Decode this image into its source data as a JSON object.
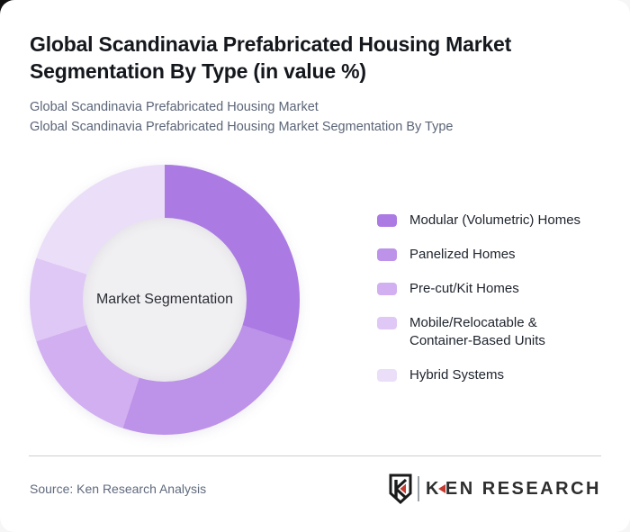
{
  "header": {
    "title": "Global Scandinavia Prefabricated Housing Market Segmentation By Type (in value %)",
    "subtitle1": "Global Scandinavia Prefabricated Housing Market",
    "subtitle2": "Global Scandinavia Prefabricated Housing Market Segmentation By Type"
  },
  "chart_data": {
    "type": "pie",
    "donut": true,
    "title": "Global Scandinavia Prefabricated Housing Market Segmentation By Type (in value %)",
    "center_label": "Market Segmentation",
    "labels": [
      "Modular (Volumetric) Homes",
      "Panelized Homes",
      "Pre-cut/Kit Homes",
      "Mobile/Relocatable & Container-Based Units",
      "Hybrid Systems"
    ],
    "values": [
      30,
      25,
      15,
      10,
      20
    ],
    "colors": [
      "#ab7ae3",
      "#bd92e9",
      "#d1aff0",
      "#dfc8f5",
      "#ebdef8"
    ],
    "start_angle_deg": 0,
    "legend_position": "right"
  },
  "footer": {
    "source": "Source: Ken Research Analysis",
    "logo_shield_letter": "K",
    "logo_text_k": "K",
    "logo_text_rest": "EN RESEARCH",
    "logo_red": "#c43a2f",
    "logo_dark": "#2e2e2e"
  }
}
